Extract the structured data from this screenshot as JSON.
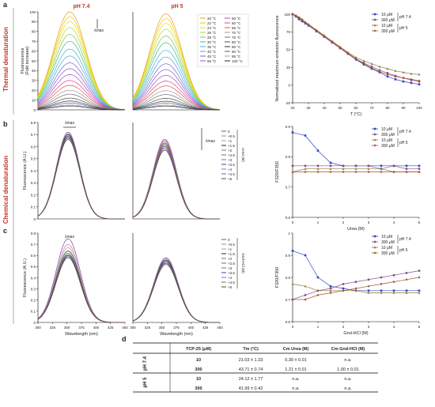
{
  "figure": {
    "panel_labels": [
      "a",
      "b",
      "c",
      "d"
    ],
    "section_labels": [
      "Thermal denaturation",
      "Chemical denaturation"
    ],
    "ph_titles": [
      "pH 7.4",
      "pH 5"
    ],
    "colors": {
      "red": "#c0392b",
      "blue": "#2f45c4",
      "purple": "#8a4c8a",
      "olive": "#8a7a3a",
      "brown": "#a0522d"
    }
  },
  "spectra_axes": {
    "a": {
      "ylabel": "Fluorescence\n(Fold increase)",
      "yticks": [
        "0",
        "10",
        "20",
        "30",
        "40",
        "50",
        "60",
        "70",
        "80",
        "90",
        "100"
      ]
    },
    "b": {
      "ylabel": "Fluorescence (A.U.)",
      "yticks": [
        "0",
        "0.1",
        "0.2",
        "0.3",
        "0.4",
        "0.5",
        "0.6",
        "0.7",
        "0.8"
      ]
    },
    "c": {
      "ylabel": "Fluorescence (A.U.)",
      "yticks": [
        "0",
        "0.1",
        "0.2",
        "0.3",
        "0.4",
        "0.5",
        "0.6",
        "0.7",
        "0.8"
      ],
      "xlabel": "Wavelength (nm)",
      "xticks": [
        "300",
        "325",
        "350",
        "375",
        "400",
        "425",
        "450"
      ]
    },
    "lambda_label": "λmax"
  },
  "temp_legend": {
    "col1": [
      "20 °C",
      "22 °C",
      "24 °C",
      "26 °C",
      "28 °C",
      "30 °C",
      "35 °C",
      "40 °C",
      "45 °C",
      "55 °C"
    ],
    "col2": [
      "50 °C",
      "60 °C",
      "65 °C",
      "70 °C",
      "75 °C",
      "80 °C",
      "85 °C",
      "90 °C",
      "95 °C",
      "100 °C"
    ]
  },
  "urea_legend": {
    "items": [
      "0",
      "+0.5",
      "+1",
      "+1.5",
      "+2",
      "+2.5",
      "+3",
      "+3.5",
      "+4",
      "+4.5",
      "+5"
    ],
    "axis": "Urea (M)"
  },
  "gnd_legend": {
    "items": [
      "0",
      "+0.5",
      "+1",
      "+1.5",
      "+2",
      "+2.5",
      "+3",
      "+3.5",
      "+4",
      "+4.5",
      "+5"
    ],
    "axis": "Gnd-HCl (M)"
  },
  "series_legend": {
    "items": [
      "10 μM",
      "300 μM",
      "10 μM",
      "300 μM"
    ],
    "groups": [
      "pH 7.4",
      "pH 5"
    ]
  },
  "chart_data": [
    {
      "type": "line",
      "panel": "a-right",
      "xlabel": "T (°C)",
      "ylabel": "Normalized maximum emission fluorescence",
      "xlim": [
        20,
        100
      ],
      "ylim": [
        -25,
        100
      ],
      "xticks": [
        20,
        30,
        40,
        50,
        60,
        70,
        80,
        90,
        100
      ],
      "yticks": [
        -25,
        0,
        25,
        50,
        75,
        100
      ],
      "x": [
        20,
        22,
        24,
        26,
        28,
        30,
        35,
        40,
        45,
        50,
        55,
        60,
        65,
        70,
        75,
        80,
        85,
        90,
        95,
        100
      ],
      "series": [
        {
          "name": "10 μM",
          "color": "#2f45c4",
          "marker": "square",
          "values": [
            100,
            97,
            93,
            90,
            87,
            84,
            76,
            68,
            60,
            52,
            44,
            36,
            29,
            23,
            18,
            12,
            8,
            5,
            3,
            1
          ]
        },
        {
          "name": "300 μM",
          "color": "#8a4c8a",
          "marker": "circle",
          "values": [
            100,
            98,
            95,
            92,
            88,
            85,
            76,
            68,
            60,
            52,
            44,
            37,
            31,
            26,
            21,
            17,
            13,
            10,
            7,
            5
          ]
        },
        {
          "name": "10 μM",
          "color": "#8a7a3a",
          "marker": "triangle",
          "values": [
            100,
            98,
            96,
            93,
            89,
            86,
            78,
            70,
            62,
            54,
            46,
            39,
            34,
            30,
            26,
            23,
            20,
            18,
            16,
            15
          ]
        },
        {
          "name": "300 μM",
          "color": "#a0522d",
          "marker": "diamond",
          "values": [
            100,
            98,
            95,
            91,
            88,
            85,
            77,
            69,
            61,
            53,
            45,
            37,
            30,
            24,
            19,
            15,
            12,
            10,
            8,
            6
          ]
        }
      ]
    },
    {
      "type": "line",
      "panel": "b-right",
      "xlabel": "Urea (M)",
      "ylabel": "F320/F350",
      "xlim": [
        0,
        5
      ],
      "ylim": [
        0.6,
        0.9
      ],
      "xticks": [
        0,
        1,
        2,
        3,
        4,
        5
      ],
      "yticks": [
        0.6,
        0.7,
        0.8,
        0.9
      ],
      "x": [
        0,
        0.5,
        1,
        1.5,
        2,
        2.5,
        3,
        3.5,
        4,
        4.5,
        5
      ],
      "series": [
        {
          "name": "10 μM",
          "color": "#2f45c4",
          "values": [
            0.88,
            0.87,
            0.82,
            0.78,
            0.77,
            0.77,
            0.77,
            0.77,
            0.77,
            0.77,
            0.77
          ]
        },
        {
          "name": "300 μM",
          "color": "#8a4c8a",
          "values": [
            0.77,
            0.77,
            0.77,
            0.77,
            0.77,
            0.77,
            0.77,
            0.76,
            0.77,
            0.76,
            0.76
          ]
        },
        {
          "name": "10 μM",
          "color": "#8a7a3a",
          "values": [
            0.75,
            0.76,
            0.76,
            0.76,
            0.76,
            0.76,
            0.76,
            0.76,
            0.75,
            0.75,
            0.75
          ]
        },
        {
          "name": "300 μM",
          "color": "#a0522d",
          "values": [
            0.75,
            0.75,
            0.75,
            0.75,
            0.75,
            0.75,
            0.75,
            0.75,
            0.75,
            0.75,
            0.75
          ]
        }
      ]
    },
    {
      "type": "line",
      "panel": "c-right",
      "xlabel": "Gnd-HCl (M)",
      "ylabel": "F320/F350",
      "xlim": [
        0,
        5
      ],
      "ylim": [
        0.6,
        1.0
      ],
      "xticks": [
        0,
        1,
        2,
        3,
        4,
        5
      ],
      "yticks": [
        0.6,
        0.7,
        0.8,
        0.9,
        1.0
      ],
      "x": [
        0,
        0.5,
        1,
        1.5,
        2,
        2.5,
        3,
        3.5,
        4,
        4.5,
        5
      ],
      "series": [
        {
          "name": "10 μM",
          "color": "#2f45c4",
          "values": [
            0.92,
            0.9,
            0.8,
            0.76,
            0.75,
            0.74,
            0.74,
            0.74,
            0.74,
            0.74,
            0.74
          ]
        },
        {
          "name": "300 μM",
          "color": "#8a4c8a",
          "values": [
            0.7,
            0.72,
            0.74,
            0.75,
            0.77,
            0.78,
            0.79,
            0.8,
            0.81,
            0.82,
            0.83
          ]
        },
        {
          "name": "10 μM",
          "color": "#8a7a3a",
          "values": [
            0.77,
            0.76,
            0.74,
            0.74,
            0.74,
            0.74,
            0.73,
            0.73,
            0.73,
            0.73,
            0.73
          ]
        },
        {
          "name": "300 μM",
          "color": "#a0522d",
          "values": [
            0.7,
            0.7,
            0.72,
            0.73,
            0.74,
            0.75,
            0.76,
            0.77,
            0.78,
            0.79,
            0.8
          ]
        }
      ]
    }
  ],
  "table": {
    "label": "d",
    "headers": [
      "TCP-25 (μM)",
      "Tm (°C)",
      "Cm Urea (M)",
      "Cm Gnd-HCl (M)"
    ],
    "groups": [
      "pH 7.4",
      "pH 5"
    ],
    "rows": [
      [
        "10",
        "21.03 ± 1.33",
        "0.30 ± 0.01",
        "n.a."
      ],
      [
        "300",
        "43.71 ± 0.74",
        "1.21 ± 0.01",
        "1.00 ± 0.01"
      ],
      [
        "10",
        "24.12 ± 1.77",
        "n.a.",
        "n.a."
      ],
      [
        "300",
        "41.99 ± 0.42",
        "n.a.",
        "n.a."
      ]
    ]
  }
}
